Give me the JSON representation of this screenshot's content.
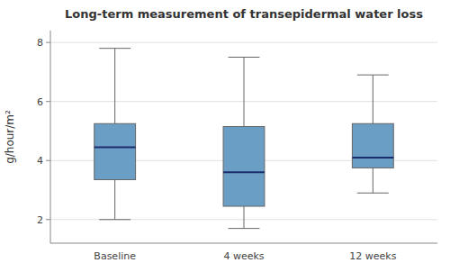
{
  "chart_data": {
    "type": "box",
    "title": "Long-term measurement of transepidermal water loss",
    "y_label": "g/hour/m²",
    "categories": [
      "Baseline",
      "4 weeks",
      "12 weeks"
    ],
    "boxes": [
      {
        "whisker_low": 2.0,
        "q1": 3.35,
        "median": 4.45,
        "q3": 5.25,
        "whisker_high": 7.8
      },
      {
        "whisker_low": 1.7,
        "q1": 2.45,
        "median": 3.6,
        "q3": 5.15,
        "whisker_high": 7.5
      },
      {
        "whisker_low": 2.9,
        "q1": 3.75,
        "median": 4.1,
        "q3": 5.25,
        "whisker_high": 6.9
      }
    ],
    "color": "#6a9ec5",
    "ylim": [
      1.2,
      8.4
    ],
    "yticks": [
      2,
      4,
      6,
      8
    ],
    "grid": true
  }
}
